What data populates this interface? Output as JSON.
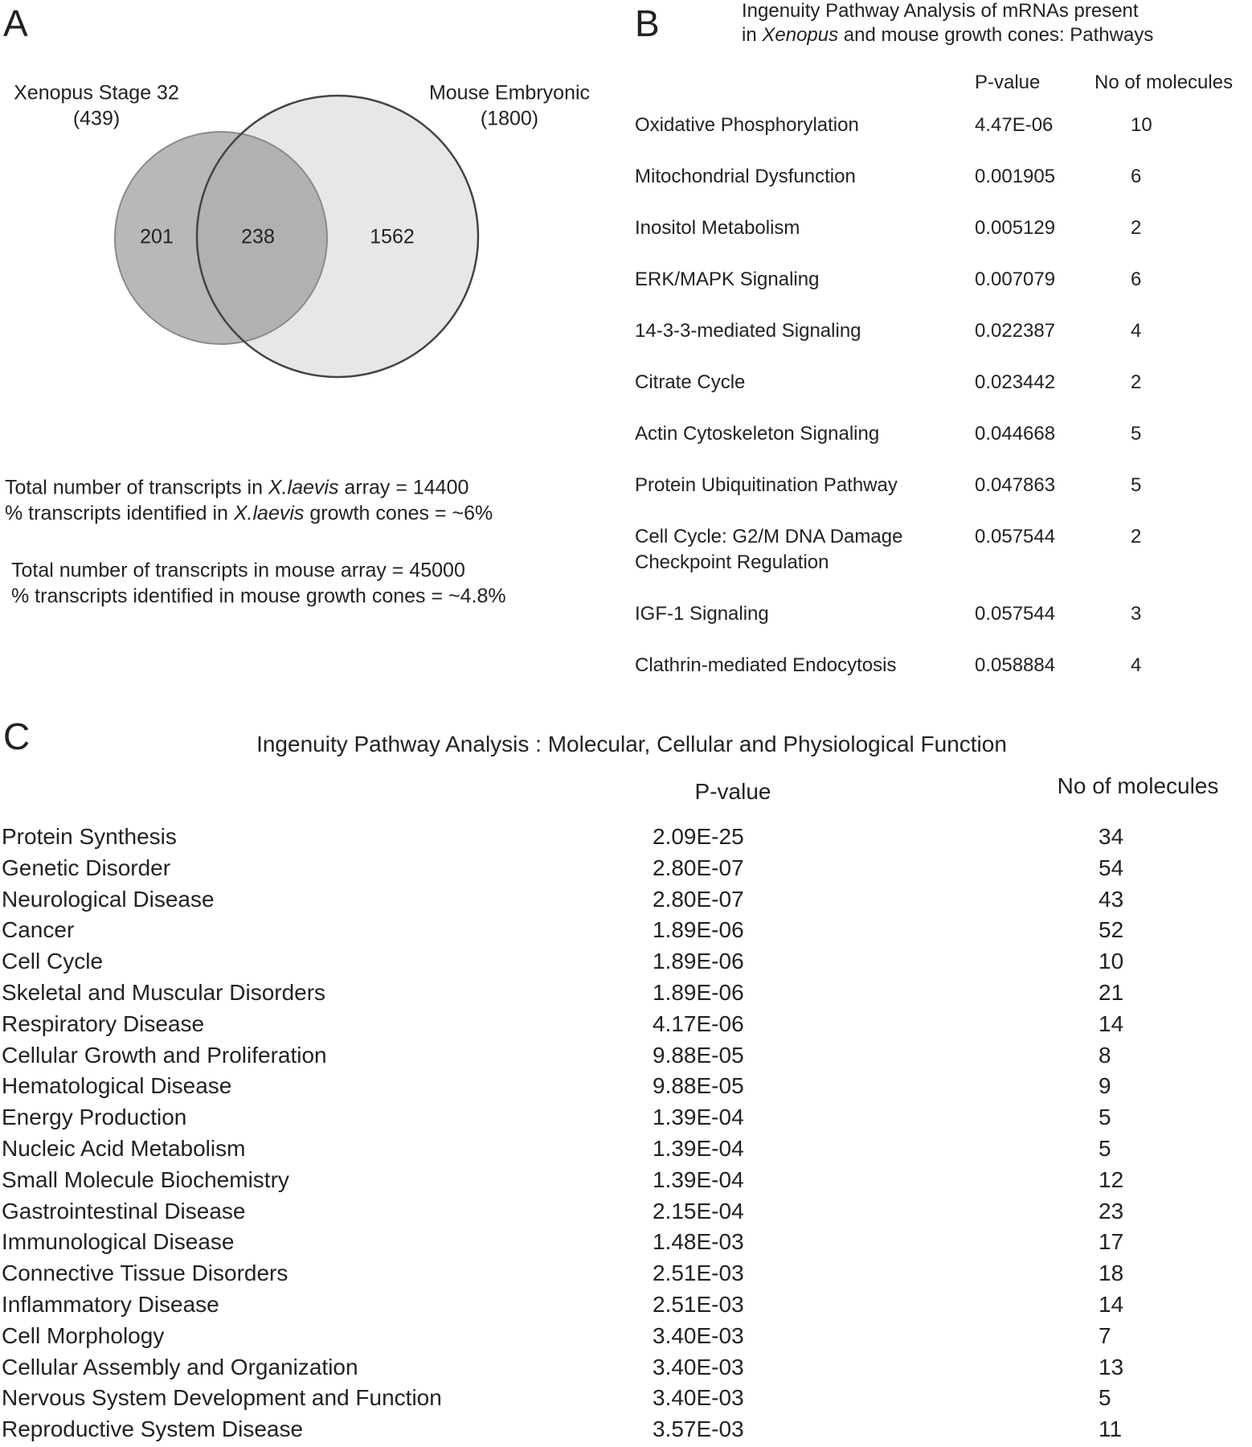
{
  "panel_a": {
    "label": "A",
    "sets": [
      {
        "name": "Xenopus Stage 32",
        "total": "(439)"
      },
      {
        "name": "Mouse Embryonic",
        "total": "(1800)"
      }
    ],
    "regions": {
      "xenopus_only": 201,
      "shared": 238,
      "mouse_only": 1562
    },
    "notes": [
      [
        "Total number of transcripts in ",
        "X.laevis",
        " array = 14400"
      ],
      [
        "% transcripts identified in ",
        "X.laevis",
        " growth cones = ~6%"
      ],
      [
        "Total number of transcripts in mouse array = 45000"
      ],
      [
        "% transcripts identified in mouse growth cones = ~4.8%"
      ]
    ]
  },
  "panel_b": {
    "label": "B",
    "title": [
      [
        "Ingenuity Pathway Analysis of mRNAs present"
      ],
      [
        "in ",
        "Xenopus",
        " and mouse growth cones: Pathways"
      ]
    ],
    "header": [
      "P-value",
      "No of molecules"
    ],
    "rows": [
      [
        "Oxidative Phosphorylation",
        "4.47E-06",
        10
      ],
      [
        "Mitochondrial Dysfunction",
        "0.001905",
        6
      ],
      [
        "Inositol Metabolism",
        "0.005129",
        2
      ],
      [
        "ERK/MAPK Signaling",
        "0.007079",
        6
      ],
      [
        "14-3-3-mediated Signaling",
        "0.022387",
        4
      ],
      [
        "Citrate Cycle",
        "0.023442",
        2
      ],
      [
        "Actin Cytoskeleton Signaling",
        "0.044668",
        5
      ],
      [
        "Protein Ubiquitination Pathway",
        "0.047863",
        5
      ],
      [
        "Cell Cycle: G2/M DNA Damage Checkpoint Regulation",
        "0.057544",
        2
      ],
      [
        "IGF-1 Signaling",
        "0.057544",
        3
      ],
      [
        "Clathrin-mediated Endocytosis",
        "0.058884",
        4
      ]
    ]
  },
  "panel_c": {
    "label": "C",
    "title": "Ingenuity Pathway Analysis : Molecular, Cellular and Physiological Function",
    "header": [
      "P-value",
      "No of molecules"
    ],
    "rows": [
      [
        "Protein Synthesis",
        "2.09E-25",
        34
      ],
      [
        "Genetic Disorder",
        "2.80E-07",
        54
      ],
      [
        "Neurological Disease",
        "2.80E-07",
        43
      ],
      [
        "Cancer",
        "1.89E-06",
        52
      ],
      [
        "Cell Cycle",
        "1.89E-06",
        10
      ],
      [
        "Skeletal and Muscular Disorders",
        "1.89E-06",
        21
      ],
      [
        "Respiratory Disease",
        "4.17E-06",
        14
      ],
      [
        "Cellular Growth and Proliferation",
        "9.88E-05",
        8
      ],
      [
        "Hematological Disease",
        "9.88E-05",
        9
      ],
      [
        "Energy Production",
        "1.39E-04",
        5
      ],
      [
        "Nucleic Acid Metabolism",
        "1.39E-04",
        5
      ],
      [
        "Small Molecule Biochemistry",
        "1.39E-04",
        12
      ],
      [
        "Gastrointestinal Disease",
        "2.15E-04",
        23
      ],
      [
        "Immunological Disease",
        "1.48E-03",
        17
      ],
      [
        "Connective Tissue Disorders",
        "2.51E-03",
        18
      ],
      [
        "Inflammatory Disease",
        "2.51E-03",
        14
      ],
      [
        "Cell Morphology",
        "3.40E-03",
        7
      ],
      [
        "Cellular Assembly and Organization",
        "3.40E-03",
        13
      ],
      [
        "Nervous System Development and Function",
        "3.40E-03",
        5
      ],
      [
        "Reproductive System Disease",
        "3.57E-03",
        11
      ]
    ]
  }
}
